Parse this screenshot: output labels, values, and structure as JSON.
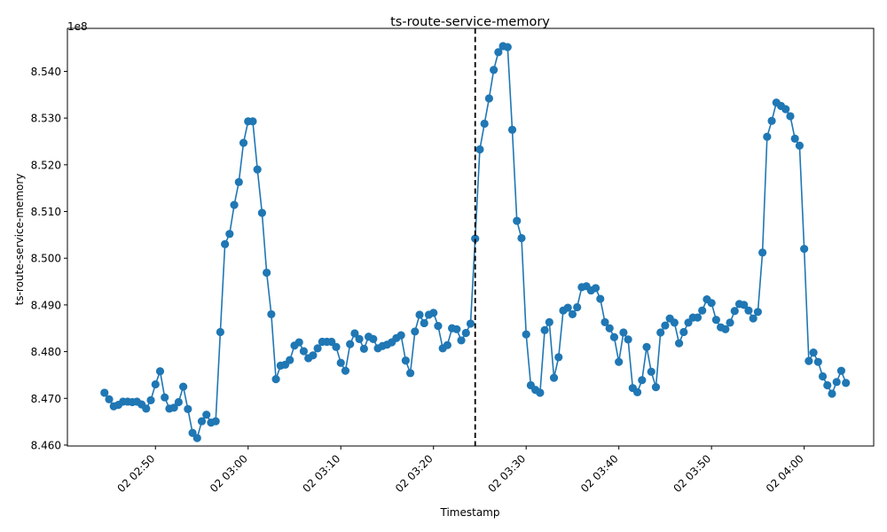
{
  "chart_data": {
    "type": "line",
    "title": "ts-route-service-memory",
    "xlabel": "Timestamp",
    "ylabel": "ts-route-service-memory",
    "y_offset_label": "1e8",
    "x_start": "02:44:30",
    "x_step_seconds": 30,
    "xlim": [
      "02:40:30",
      "04:07:30"
    ],
    "ylim": [
      845980000,
      854920000
    ],
    "x_ticks": [
      "02 02:50",
      "02 03:00",
      "02 03:10",
      "02 03:20",
      "02 03:30",
      "02 03:40",
      "02 03:50",
      "02 04:00"
    ],
    "y_ticks": [
      "8.460",
      "8.470",
      "8.480",
      "8.490",
      "8.500",
      "8.510",
      "8.520",
      "8.530",
      "8.540",
      "8.550"
    ],
    "y_tick_values": [
      846000000,
      847000000,
      848000000,
      849000000,
      850000000,
      851000000,
      852000000,
      853000000,
      854000000,
      855000000
    ],
    "vline": {
      "x": "03:24:30",
      "style": "dashed",
      "color": "#000000"
    },
    "series": [
      {
        "color": "#1f77b4",
        "values": [
          847120000,
          846980000,
          846830000,
          846860000,
          846930000,
          846930000,
          846920000,
          846930000,
          846870000,
          846780000,
          846960000,
          847300000,
          847580000,
          847020000,
          846780000,
          846800000,
          846920000,
          847250000,
          846770000,
          846260000,
          846150000,
          846510000,
          846650000,
          846480000,
          846510000,
          848420000,
          850300000,
          850520000,
          851140000,
          851630000,
          852470000,
          852930000,
          852930000,
          851900000,
          850970000,
          849690000,
          848800000,
          847410000,
          847700000,
          847720000,
          847820000,
          848130000,
          848200000,
          848010000,
          847860000,
          847920000,
          848070000,
          848210000,
          848210000,
          848210000,
          848100000,
          847760000,
          847590000,
          848160000,
          848390000,
          848270000,
          848060000,
          848320000,
          848270000,
          848070000,
          848120000,
          848150000,
          848200000,
          848290000,
          848350000,
          847810000,
          847540000,
          848430000,
          848790000,
          848610000,
          848790000,
          848830000,
          848550000,
          848070000,
          848140000,
          848500000,
          848480000,
          848240000,
          848400000,
          848600000,
          850420000,
          852330000,
          852880000,
          853420000,
          854030000,
          854410000,
          854540000,
          854520000,
          852750000,
          850800000,
          850430000,
          848370000,
          847280000,
          847180000,
          847120000,
          848460000,
          848630000,
          847440000,
          847880000,
          848880000,
          848940000,
          848800000,
          848950000,
          849380000,
          849400000,
          849310000,
          849360000,
          849130000,
          848630000,
          848500000,
          848310000,
          847780000,
          848410000,
          848260000,
          847220000,
          847130000,
          847390000,
          848100000,
          847570000,
          847240000,
          848410000,
          848560000,
          848710000,
          848620000,
          848180000,
          848420000,
          848620000,
          848730000,
          848730000,
          848880000,
          849120000,
          849040000,
          848680000,
          848520000,
          848480000,
          848620000,
          848870000,
          849020000,
          849000000,
          848880000,
          848710000,
          848850000,
          850120000,
          852600000,
          852940000,
          853330000,
          853260000,
          853190000,
          853040000,
          852560000,
          852410000,
          850200000,
          847800000,
          847980000,
          847780000,
          847470000,
          847280000,
          847100000,
          847350000,
          847590000,
          847330000
        ]
      }
    ]
  }
}
